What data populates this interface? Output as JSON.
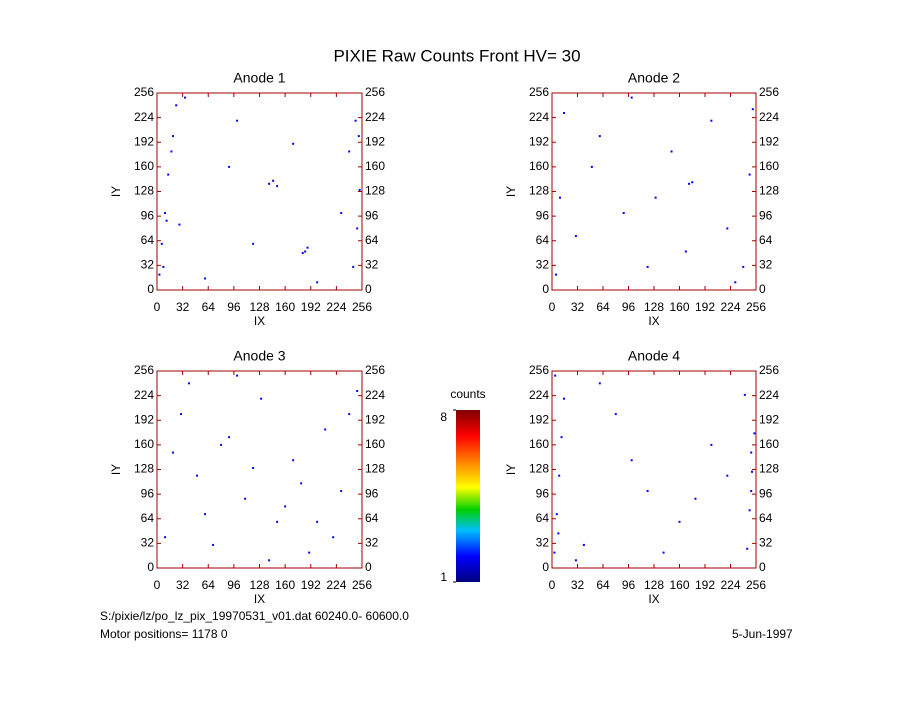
{
  "header": {
    "title": "PIXIE Raw Counts Front HV= 30"
  },
  "footer": {
    "file": "S:/pixie/lz/po_lz_pix_19970531_v01.dat   60240.0- 60600.0",
    "motor": "Motor positions= 1178 0",
    "date": "5-Jun-1997"
  },
  "chart_data": [
    {
      "type": "scatter",
      "title": "Anode 1",
      "x_label": "IX",
      "y_label": "IY",
      "color": "#0000ff",
      "xlim": [
        0,
        256
      ],
      "ylim": [
        0,
        256
      ],
      "xticks": [
        0,
        32,
        64,
        96,
        128,
        160,
        192,
        224,
        256
      ],
      "yticks": [
        0,
        32,
        64,
        96,
        128,
        160,
        192,
        224,
        256
      ],
      "x": [
        3,
        6,
        10,
        14,
        20,
        24,
        8,
        12,
        18,
        28,
        140,
        145,
        150,
        185,
        188,
        182,
        245,
        250,
        253,
        240,
        248,
        252,
        60,
        100,
        200,
        230,
        35,
        120,
        90,
        170
      ],
      "y": [
        20,
        60,
        100,
        150,
        200,
        240,
        30,
        90,
        180,
        85,
        138,
        142,
        135,
        50,
        55,
        48,
        30,
        80,
        130,
        180,
        220,
        200,
        15,
        220,
        10,
        100,
        250,
        60,
        160,
        190
      ]
    },
    {
      "type": "scatter",
      "title": "Anode 2",
      "x_label": "IX",
      "y_label": "IY",
      "color": "#0000ff",
      "xlim": [
        0,
        256
      ],
      "ylim": [
        0,
        256
      ],
      "xticks": [
        0,
        32,
        64,
        96,
        128,
        160,
        192,
        224,
        256
      ],
      "yticks": [
        0,
        32,
        64,
        96,
        128,
        160,
        192,
        224,
        256
      ],
      "x": [
        5,
        10,
        15,
        240,
        248,
        252,
        176,
        172,
        168,
        60,
        90,
        120,
        200,
        220,
        30,
        150,
        100,
        230,
        50,
        130
      ],
      "y": [
        20,
        120,
        230,
        30,
        150,
        235,
        140,
        138,
        50,
        200,
        100,
        30,
        220,
        80,
        70,
        180,
        250,
        10,
        160,
        120
      ]
    },
    {
      "type": "scatter",
      "title": "Anode 3",
      "x_label": "IX",
      "y_label": "IY",
      "color": "#0000ff",
      "xlim": [
        0,
        256
      ],
      "ylim": [
        0,
        256
      ],
      "xticks": [
        0,
        32,
        64,
        96,
        128,
        160,
        192,
        224,
        256
      ],
      "yticks": [
        0,
        32,
        64,
        96,
        128,
        160,
        192,
        224,
        256
      ],
      "x": [
        10,
        30,
        50,
        70,
        90,
        110,
        130,
        150,
        170,
        190,
        210,
        230,
        250,
        20,
        60,
        100,
        140,
        180,
        220,
        240,
        40,
        80,
        120,
        160,
        200
      ],
      "y": [
        40,
        200,
        120,
        30,
        170,
        90,
        220,
        60,
        140,
        20,
        180,
        100,
        230,
        150,
        70,
        250,
        10,
        110,
        40,
        200,
        240,
        160,
        130,
        80,
        60
      ]
    },
    {
      "type": "scatter",
      "title": "Anode 4",
      "x_label": "IX",
      "y_label": "IY",
      "color": "#0000ff",
      "xlim": [
        0,
        256
      ],
      "ylim": [
        0,
        256
      ],
      "xticks": [
        0,
        32,
        64,
        96,
        128,
        160,
        192,
        224,
        256
      ],
      "yticks": [
        0,
        32,
        64,
        96,
        128,
        160,
        192,
        224,
        256
      ],
      "x": [
        3,
        6,
        9,
        12,
        15,
        4,
        8,
        245,
        248,
        251,
        254,
        242,
        250,
        40,
        80,
        120,
        160,
        200,
        60,
        100,
        140,
        180,
        220,
        30,
        250
      ],
      "y": [
        20,
        70,
        120,
        170,
        220,
        250,
        45,
        25,
        75,
        125,
        175,
        225,
        150,
        30,
        200,
        100,
        60,
        160,
        240,
        140,
        20,
        90,
        120,
        10,
        100
      ]
    },
    {
      "type": "colorbar",
      "title": "counts",
      "ylim": [
        1,
        8
      ],
      "yticks": [
        1,
        8
      ]
    }
  ]
}
